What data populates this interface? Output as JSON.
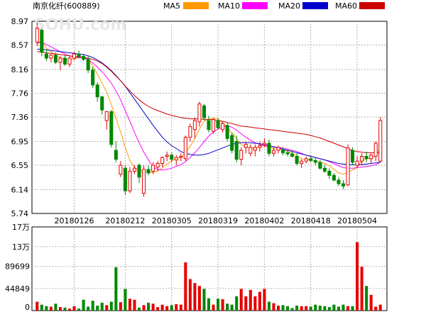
{
  "header": {
    "title": "南京化纤(600889)",
    "watermark": "SOHU.com"
  },
  "legend": [
    {
      "name": "MA5",
      "color": "#ff9900"
    },
    {
      "name": "MA10",
      "color": "#ff00ff"
    },
    {
      "name": "MA20",
      "color": "#0000cc"
    },
    {
      "name": "MA60",
      "color": "#cc0000"
    }
  ],
  "colors": {
    "up": "#e60000",
    "down": "#008800",
    "grid": "#b0b0b0"
  },
  "chart_data": {
    "type": "candlestick",
    "title": "南京化纤(600889)",
    "price_axis": {
      "ticks": [
        "8.97",
        "8.57",
        "8.16",
        "7.76",
        "7.36",
        "6.95",
        "6.55",
        "6.14",
        "5.74"
      ],
      "ylim": [
        5.74,
        8.97
      ]
    },
    "volume_axis": {
      "ticks": [
        "17万",
        "13万",
        "89699",
        "44849",
        "0"
      ],
      "ylim": [
        0,
        170000
      ]
    },
    "x_tick_labels": [
      "20180126",
      "20180212",
      "20180305",
      "20180319",
      "20180402",
      "20180418",
      "20180504"
    ],
    "x_tick_dates": [
      "01-26",
      "02-12",
      "03-05",
      "03-19",
      "04-02",
      "04-18",
      "05-04"
    ],
    "dates": [
      "01-16",
      "01-17",
      "01-18",
      "01-19",
      "01-22",
      "01-23",
      "01-24",
      "01-25",
      "01-26",
      "01-29",
      "01-30",
      "01-31",
      "02-01",
      "02-02",
      "02-05",
      "02-06",
      "02-07",
      "02-08",
      "02-09",
      "02-12",
      "02-13",
      "02-14",
      "02-22",
      "02-23",
      "02-26",
      "02-27",
      "02-28",
      "03-01",
      "03-02",
      "03-05",
      "03-06",
      "03-07",
      "03-08",
      "03-09",
      "03-12",
      "03-13",
      "03-14",
      "03-15",
      "03-16",
      "03-19",
      "03-20",
      "03-21",
      "03-22",
      "03-23",
      "03-26",
      "03-27",
      "03-28",
      "03-29",
      "03-30",
      "04-02",
      "04-03",
      "04-04",
      "04-09",
      "04-10",
      "04-11",
      "04-12",
      "04-13",
      "04-16",
      "04-17",
      "04-18",
      "04-19",
      "04-20",
      "04-23",
      "04-24",
      "04-25",
      "04-26",
      "04-27",
      "05-02",
      "05-03",
      "05-04",
      "05-07",
      "05-08",
      "05-09",
      "05-10",
      "05-11"
    ],
    "ohlc": [
      [
        8.62,
        8.95,
        8.55,
        8.85
      ],
      [
        8.82,
        8.85,
        8.38,
        8.45
      ],
      [
        8.42,
        8.5,
        8.3,
        8.35
      ],
      [
        8.35,
        8.42,
        8.28,
        8.4
      ],
      [
        8.4,
        8.44,
        8.25,
        8.28
      ],
      [
        8.28,
        8.38,
        8.15,
        8.35
      ],
      [
        8.35,
        8.4,
        8.22,
        8.25
      ],
      [
        8.25,
        8.4,
        8.2,
        8.35
      ],
      [
        8.35,
        8.46,
        8.32,
        8.42
      ],
      [
        8.42,
        8.48,
        8.35,
        8.38
      ],
      [
        8.38,
        8.42,
        8.3,
        8.33
      ],
      [
        8.33,
        8.38,
        8.1,
        8.15
      ],
      [
        8.15,
        8.2,
        7.85,
        7.9
      ],
      [
        7.9,
        7.95,
        7.62,
        7.7
      ],
      [
        7.7,
        7.72,
        7.4,
        7.48
      ],
      [
        7.3,
        7.46,
        7.15,
        7.45
      ],
      [
        7.45,
        7.48,
        6.85,
        6.9
      ],
      [
        6.8,
        6.95,
        6.6,
        6.65
      ],
      [
        6.4,
        6.62,
        6.35,
        6.55
      ],
      [
        6.5,
        6.55,
        6.05,
        6.12
      ],
      [
        6.12,
        6.52,
        6.08,
        6.45
      ],
      [
        6.45,
        6.55,
        6.4,
        6.5
      ],
      [
        6.55,
        6.58,
        6.25,
        6.35
      ],
      [
        6.08,
        6.55,
        6.02,
        6.48
      ],
      [
        6.48,
        6.55,
        6.38,
        6.42
      ],
      [
        6.45,
        6.6,
        6.4,
        6.55
      ],
      [
        6.52,
        6.62,
        6.45,
        6.58
      ],
      [
        6.58,
        6.7,
        6.52,
        6.68
      ],
      [
        6.7,
        6.78,
        6.62,
        6.72
      ],
      [
        6.72,
        6.76,
        6.6,
        6.65
      ],
      [
        6.64,
        6.72,
        6.55,
        6.68
      ],
      [
        6.68,
        6.75,
        6.62,
        6.7
      ],
      [
        6.66,
        7.05,
        6.62,
        7.02
      ],
      [
        7.02,
        7.25,
        6.95,
        7.2
      ],
      [
        7.15,
        7.35,
        7.0,
        7.3
      ],
      [
        7.28,
        7.62,
        7.2,
        7.58
      ],
      [
        7.55,
        7.58,
        7.3,
        7.35
      ],
      [
        7.3,
        7.38,
        7.1,
        7.15
      ],
      [
        7.12,
        7.34,
        7.08,
        7.32
      ],
      [
        7.3,
        7.34,
        7.15,
        7.18
      ],
      [
        7.15,
        7.28,
        7.1,
        7.25
      ],
      [
        7.22,
        7.26,
        6.95,
        7.0
      ],
      [
        7.05,
        7.1,
        6.75,
        6.8
      ],
      [
        6.95,
        7.05,
        6.6,
        6.65
      ],
      [
        6.65,
        6.85,
        6.55,
        6.8
      ],
      [
        6.85,
        6.95,
        6.75,
        6.9
      ],
      [
        6.75,
        6.9,
        6.7,
        6.85
      ],
      [
        6.8,
        6.9,
        6.7,
        6.85
      ],
      [
        6.85,
        6.95,
        6.78,
        6.88
      ],
      [
        6.9,
        7.0,
        6.85,
        6.92
      ],
      [
        6.92,
        6.98,
        6.7,
        6.75
      ],
      [
        6.75,
        6.85,
        6.7,
        6.8
      ],
      [
        6.8,
        6.88,
        6.75,
        6.85
      ],
      [
        6.8,
        6.85,
        6.72,
        6.76
      ],
      [
        6.76,
        6.82,
        6.7,
        6.74
      ],
      [
        6.74,
        6.8,
        6.68,
        6.7
      ],
      [
        6.7,
        6.75,
        6.55,
        6.58
      ],
      [
        6.58,
        6.65,
        6.5,
        6.62
      ],
      [
        6.62,
        6.7,
        6.58,
        6.66
      ],
      [
        6.66,
        6.72,
        6.6,
        6.63
      ],
      [
        6.63,
        6.68,
        6.55,
        6.6
      ],
      [
        6.6,
        6.64,
        6.48,
        6.5
      ],
      [
        6.5,
        6.56,
        6.42,
        6.45
      ],
      [
        6.45,
        6.5,
        6.32,
        6.38
      ],
      [
        6.38,
        6.42,
        6.28,
        6.3
      ],
      [
        6.3,
        6.35,
        6.2,
        6.24
      ],
      [
        6.24,
        6.3,
        6.15,
        6.2
      ],
      [
        6.22,
        6.9,
        6.2,
        6.84
      ],
      [
        6.8,
        6.85,
        6.55,
        6.6
      ],
      [
        6.55,
        6.7,
        6.5,
        6.62
      ],
      [
        6.62,
        6.75,
        6.55,
        6.7
      ],
      [
        6.7,
        6.78,
        6.6,
        6.66
      ],
      [
        6.66,
        6.75,
        6.58,
        6.72
      ],
      [
        6.7,
        6.95,
        6.62,
        6.92
      ],
      [
        6.62,
        7.36,
        6.6,
        7.3
      ]
    ],
    "volume": [
      18000,
      12000,
      9000,
      8000,
      14000,
      7000,
      6000,
      4000,
      9000,
      4000,
      22000,
      8000,
      20000,
      10000,
      16000,
      11000,
      18000,
      88000,
      17000,
      44000,
      24000,
      22000,
      6000,
      11000,
      16000,
      14000,
      7000,
      12000,
      9000,
      11000,
      13000,
      12000,
      98000,
      64000,
      56000,
      50000,
      44000,
      25000,
      12000,
      24000,
      23000,
      14000,
      12000,
      29000,
      44000,
      29000,
      42000,
      29000,
      38000,
      44000,
      18000,
      15000,
      10000,
      11000,
      9000,
      5000,
      10000,
      9000,
      9000,
      8000,
      12000,
      10000,
      9000,
      7000,
      12000,
      8000,
      12000,
      9000,
      9000,
      139000,
      89000,
      50000,
      32000,
      8000,
      12000
    ],
    "ma5": [
      8.62,
      8.63,
      8.52,
      8.46,
      8.4,
      8.36,
      8.33,
      8.32,
      8.33,
      8.36,
      8.37,
      8.33,
      8.22,
      8.08,
      7.93,
      7.78,
      7.57,
      7.34,
      7.11,
      6.85,
      6.63,
      6.51,
      6.47,
      6.44,
      6.43,
      6.43,
      6.45,
      6.51,
      6.57,
      6.62,
      6.66,
      6.68,
      6.76,
      6.87,
      7.0,
      7.16,
      7.29,
      7.32,
      7.34,
      7.33,
      7.26,
      7.18,
      7.09,
      7.0,
      6.9,
      6.85,
      6.83,
      6.84,
      6.86,
      6.88,
      6.85,
      6.83,
      6.82,
      6.81,
      6.78,
      6.75,
      6.71,
      6.66,
      6.64,
      6.64,
      6.62,
      6.6,
      6.58,
      6.54,
      6.48,
      6.42,
      6.4,
      6.43,
      6.47,
      6.52,
      6.62,
      6.66,
      6.66,
      6.71,
      6.85
    ],
    "ma10": [
      8.6,
      8.62,
      8.58,
      8.54,
      8.5,
      8.46,
      8.42,
      8.39,
      8.37,
      8.36,
      8.36,
      8.33,
      8.27,
      8.2,
      8.12,
      8.03,
      7.93,
      7.8,
      7.65,
      7.47,
      7.29,
      7.1,
      6.93,
      6.77,
      6.64,
      6.52,
      6.48,
      6.47,
      6.48,
      6.5,
      6.53,
      6.56,
      6.61,
      6.68,
      6.76,
      6.85,
      6.95,
      7.04,
      7.11,
      7.16,
      7.19,
      7.21,
      7.19,
      7.14,
      7.08,
      7.02,
      6.97,
      6.93,
      6.9,
      6.88,
      6.87,
      6.86,
      6.85,
      6.84,
      6.82,
      6.8,
      6.78,
      6.75,
      6.72,
      6.7,
      6.68,
      6.66,
      6.64,
      6.61,
      6.58,
      6.54,
      6.51,
      6.5,
      6.5,
      6.51,
      6.52,
      6.53,
      6.54,
      6.56,
      6.6
    ],
    "ma20": [
      8.5,
      8.5,
      8.49,
      8.48,
      8.47,
      8.46,
      8.45,
      8.44,
      8.43,
      8.42,
      8.41,
      8.39,
      8.36,
      8.32,
      8.27,
      8.21,
      8.14,
      8.06,
      7.97,
      7.88,
      7.77,
      7.66,
      7.55,
      7.44,
      7.33,
      7.22,
      7.12,
      7.02,
      6.94,
      6.88,
      6.83,
      6.78,
      6.75,
      6.73,
      6.72,
      6.72,
      6.73,
      6.75,
      6.78,
      6.81,
      6.84,
      6.87,
      6.9,
      6.92,
      6.93,
      6.93,
      6.93,
      6.92,
      6.91,
      6.9,
      6.88,
      6.86,
      6.84,
      6.82,
      6.8,
      6.78,
      6.76,
      6.74,
      6.72,
      6.7,
      6.68,
      6.66,
      6.64,
      6.62,
      6.6,
      6.58,
      6.57,
      6.56,
      6.56,
      6.56,
      6.56,
      6.57,
      6.58,
      6.59,
      6.6
    ],
    "ma60": [
      8.46,
      8.45,
      8.44,
      8.43,
      8.42,
      8.41,
      8.4,
      8.39,
      8.38,
      8.37,
      8.36,
      8.35,
      8.33,
      8.3,
      8.26,
      8.2,
      8.13,
      8.05,
      7.97,
      7.88,
      7.8,
      7.72,
      7.65,
      7.59,
      7.54,
      7.5,
      7.47,
      7.44,
      7.41,
      7.39,
      7.37,
      7.35,
      7.34,
      7.33,
      7.33,
      7.33,
      7.32,
      7.32,
      7.31,
      7.3,
      7.29,
      7.27,
      7.25,
      7.23,
      7.21,
      7.2,
      7.19,
      7.18,
      7.17,
      7.16,
      7.15,
      7.14,
      7.13,
      7.12,
      7.11,
      7.1,
      7.09,
      7.08,
      7.07,
      7.05,
      7.03,
      7.01,
      6.98,
      6.95,
      6.92,
      6.89,
      6.86,
      6.83,
      6.8,
      6.78,
      6.77,
      6.76,
      6.76,
      6.76,
      6.76
    ]
  }
}
